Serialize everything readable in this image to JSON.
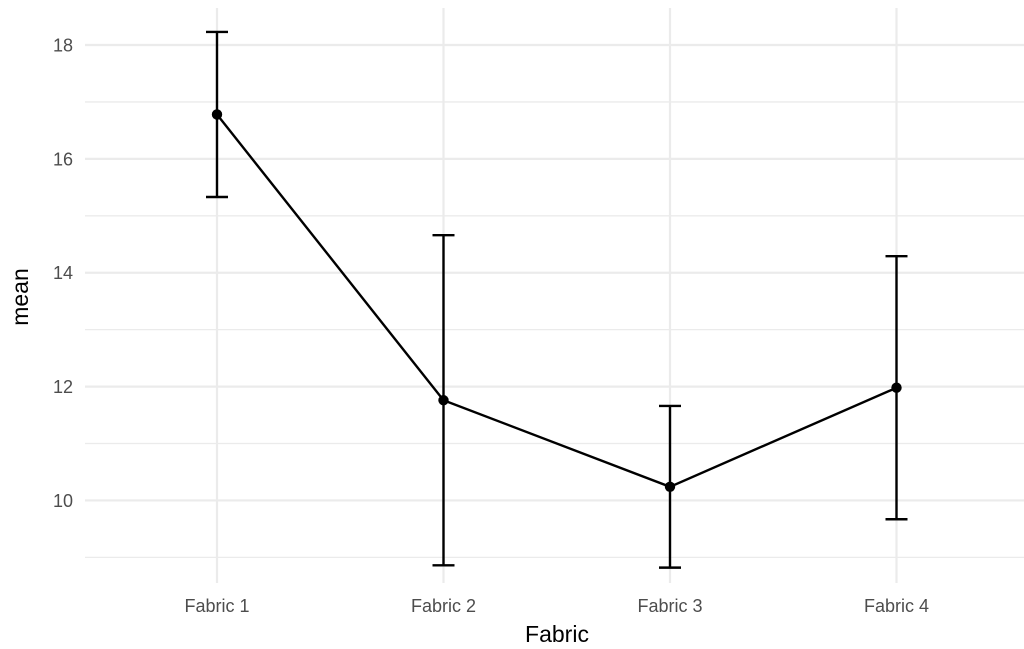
{
  "chart_data": {
    "type": "line",
    "title": "",
    "xlabel": "Fabric",
    "ylabel": "mean",
    "categories": [
      "Fabric 1",
      "Fabric 2",
      "Fabric 3",
      "Fabric 4"
    ],
    "series": [
      {
        "values": [
          16.78,
          11.76,
          10.24,
          11.98
        ],
        "error_lower": [
          15.33,
          8.86,
          8.82,
          9.67
        ],
        "error_upper": [
          18.23,
          14.66,
          11.66,
          14.29
        ]
      }
    ],
    "ylim": [
      8.55,
      18.65
    ],
    "yticks": [
      10,
      12,
      14,
      16,
      18
    ],
    "grid": true,
    "legend": "none",
    "colors": {
      "line": "#000000",
      "grid": "#ebebeb",
      "tick_text": "#4d4d4d"
    }
  }
}
